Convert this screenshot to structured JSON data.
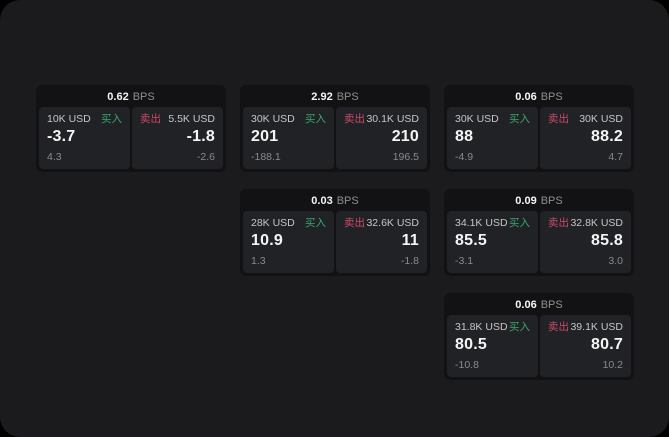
{
  "theme": {
    "background": "#000000",
    "window_bg": "#1b1b1d",
    "card_bg": "#121214",
    "pane_bg": "#212225",
    "text_primary": "#f5f5f5",
    "text_secondary": "#c6c6c6",
    "text_muted": "#8a8a8a",
    "buy_green": "#3aa56c",
    "sell_red": "#cc4a68"
  },
  "labels": {
    "bps_unit": "BPS",
    "buy": "买入",
    "sell": "卖出"
  },
  "cards": [
    {
      "row": 1,
      "col": 1,
      "bps": "0.62",
      "buy": {
        "amount": "10K USD",
        "price": "-3.7",
        "delta": "4.3"
      },
      "sell": {
        "amount": "5.5K USD",
        "price": "-1.8",
        "delta": "-2.6"
      }
    },
    {
      "row": 1,
      "col": 2,
      "bps": "2.92",
      "buy": {
        "amount": "30K USD",
        "price": "201",
        "delta": "-188.1"
      },
      "sell": {
        "amount": "30.1K USD",
        "price": "210",
        "delta": "196.5"
      }
    },
    {
      "row": 1,
      "col": 3,
      "bps": "0.06",
      "buy": {
        "amount": "30K USD",
        "price": "88",
        "delta": "-4.9"
      },
      "sell": {
        "amount": "30K USD",
        "price": "88.2",
        "delta": "4.7"
      }
    },
    {
      "row": 2,
      "col": 2,
      "bps": "0.03",
      "buy": {
        "amount": "28K USD",
        "price": "10.9",
        "delta": "1.3"
      },
      "sell": {
        "amount": "32.6K USD",
        "price": "11",
        "delta": "-1.8"
      }
    },
    {
      "row": 2,
      "col": 3,
      "bps": "0.09",
      "buy": {
        "amount": "34.1K USD",
        "price": "85.5",
        "delta": "-3.1"
      },
      "sell": {
        "amount": "32.8K USD",
        "price": "85.8",
        "delta": "3.0"
      }
    },
    {
      "row": 3,
      "col": 3,
      "bps": "0.06",
      "buy": {
        "amount": "31.8K USD",
        "price": "80.5",
        "delta": "-10.8"
      },
      "sell": {
        "amount": "39.1K USD",
        "price": "80.7",
        "delta": "10.2"
      }
    }
  ]
}
